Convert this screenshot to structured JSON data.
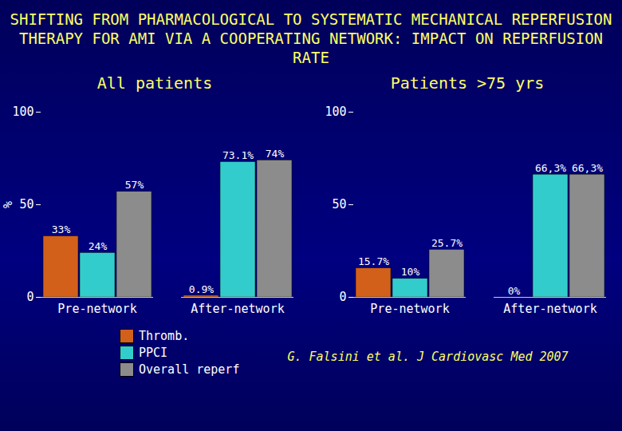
{
  "title": "SHIFTING FROM PHARMACOLOGICAL TO SYSTEMATIC MECHANICAL REPERFUSION THERAPY FOR AMI VIA A COOPERATING NETWORK: IMPACT ON REPERFUSION RATE",
  "source": "G. Falsini et al. J Cardiovasc Med 2007",
  "chart_data": [
    {
      "type": "bar",
      "title": "All patients",
      "y_label": "%",
      "categories": [
        "Pre-network",
        "After-network"
      ],
      "ylim": [
        0,
        100
      ],
      "yticks": [
        0,
        50,
        100
      ],
      "data_labels": true,
      "legend": "bottom",
      "series": [
        {
          "name": "Thromb.",
          "color": "#d2601a",
          "values": [
            33,
            0.9
          ],
          "value_labels": [
            "33%",
            "0.9%"
          ]
        },
        {
          "name": "PPCI",
          "color": "#33cccc",
          "values": [
            24,
            73.1
          ],
          "value_labels": [
            "24%",
            "73.1%"
          ]
        },
        {
          "name": "Overall reperf",
          "color": "#8c8c8c",
          "values": [
            57,
            74
          ],
          "value_labels": [
            "57%",
            "74%"
          ]
        }
      ]
    },
    {
      "type": "bar",
      "title": "Patients >75 yrs",
      "categories": [
        "Pre-network",
        "After-network"
      ],
      "ylim": [
        0,
        100
      ],
      "yticks": [
        0,
        50,
        100
      ],
      "data_labels": true,
      "legend": "bottom",
      "series": [
        {
          "name": "Thromb.",
          "color": "#d2601a",
          "values": [
            15.7,
            0
          ],
          "value_labels": [
            "15.7%",
            "0%"
          ]
        },
        {
          "name": "PPCI",
          "color": "#33cccc",
          "values": [
            10,
            66.3
          ],
          "value_labels": [
            "10%",
            "66,3%"
          ]
        },
        {
          "name": "Overall reperf",
          "color": "#8c8c8c",
          "values": [
            25.7,
            66.3
          ],
          "value_labels": [
            "25.7%",
            "66,3%"
          ]
        }
      ]
    }
  ]
}
